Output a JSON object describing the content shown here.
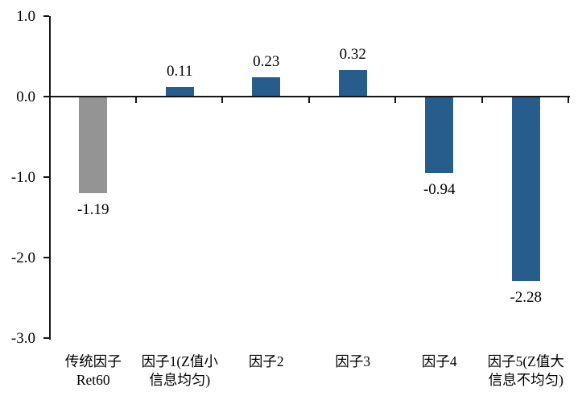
{
  "chart_data": {
    "type": "bar",
    "title": "",
    "xlabel": "",
    "ylabel": "",
    "categories": [
      {
        "lines": [
          "传统因子",
          "Ret60"
        ]
      },
      {
        "lines": [
          "因子1(Z值小",
          "信息均匀)"
        ]
      },
      {
        "lines": [
          "因子2"
        ]
      },
      {
        "lines": [
          "因子3"
        ]
      },
      {
        "lines": [
          "因子4"
        ]
      },
      {
        "lines": [
          "因子5(Z值大",
          "信息不均匀)"
        ]
      }
    ],
    "values": [
      -1.19,
      0.11,
      0.23,
      0.32,
      -0.94,
      -2.28
    ],
    "value_labels": [
      "-1.19",
      "0.11",
      "0.23",
      "0.32",
      "-0.94",
      "-2.28"
    ],
    "bar_colors": [
      "#949494",
      "#275D8D",
      "#275D8D",
      "#275D8D",
      "#275D8D",
      "#275D8D"
    ],
    "series_color": "#275D8D",
    "highlight_color": "#949494",
    "y_ticks": [
      {
        "value": 1.0,
        "label": "1.0"
      },
      {
        "value": 0.0,
        "label": "0.0"
      },
      {
        "value": -1.0,
        "label": "-1.0"
      },
      {
        "value": -2.0,
        "label": "-2.0"
      },
      {
        "value": -3.0,
        "label": "-3.0"
      }
    ],
    "ylim": [
      -3.0,
      1.0
    ],
    "grid": false,
    "legend": null,
    "axis_color": "#161616",
    "text_color": "#000000",
    "background_color": "#ffffff"
  }
}
